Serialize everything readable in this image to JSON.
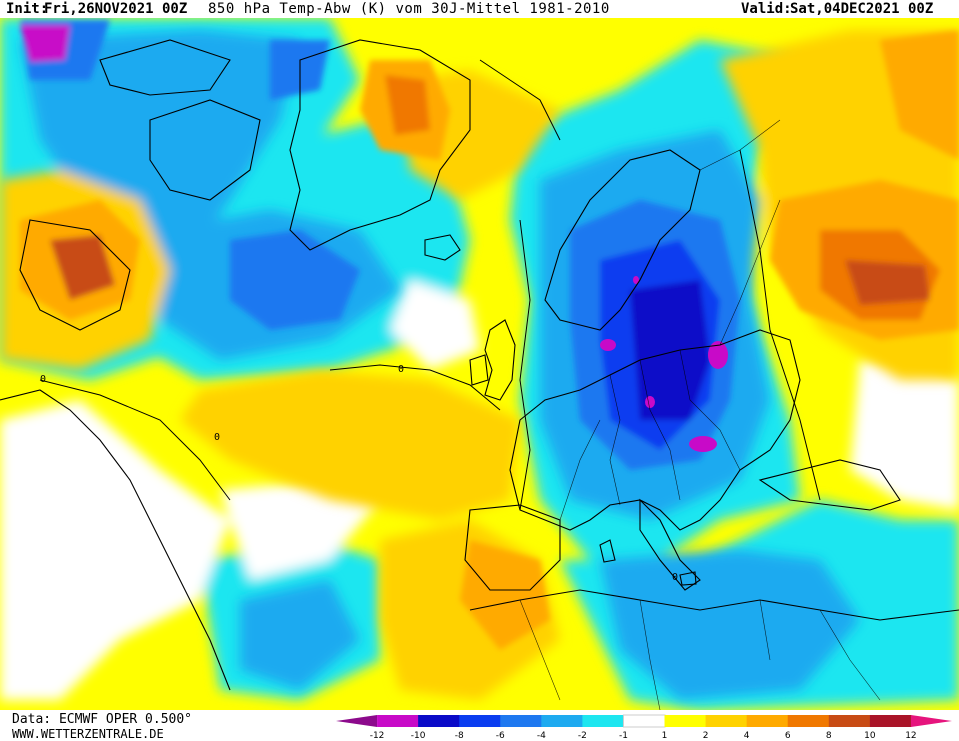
{
  "header": {
    "init_label": "Init:",
    "init_value": "Fri,26NOV2021 00Z",
    "title": "850 hPa Temp-Abw (K) vom 30J-Mittel 1981-2010",
    "valid_label": "Valid:",
    "valid_value": "Sat,04DEC2021 00Z"
  },
  "footer": {
    "data_source": "Data: ECMWF OPER 0.500°",
    "website": "WWW.WETTERZENTRALE.DE"
  },
  "legend": {
    "ticks": [
      "-12",
      "-10",
      "-8",
      "-6",
      "-4",
      "-2",
      "-1",
      "1",
      "2",
      "4",
      "6",
      "8",
      "10",
      "12"
    ],
    "colors": [
      "#8c0a8c",
      "#c80ac8",
      "#0a0ac8",
      "#0a3cf0",
      "#1e78f0",
      "#1eaaf0",
      "#1ee6f0",
      "#ffffff",
      "#ffff00",
      "#ffd200",
      "#ffaa00",
      "#f07800",
      "#c84b14",
      "#aa1428",
      "#e6147d"
    ]
  },
  "map": {
    "contour_label": "0"
  }
}
